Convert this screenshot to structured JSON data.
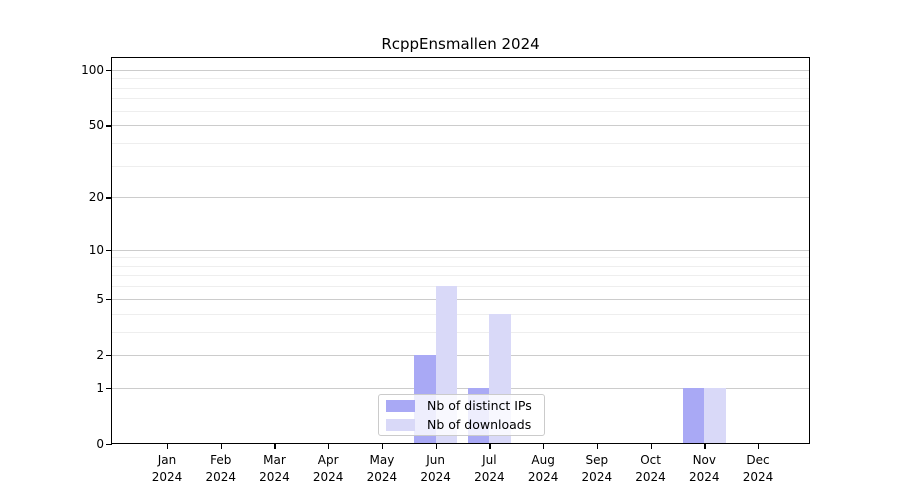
{
  "chart_data": {
    "type": "bar",
    "title": "RcppEnsmallen 2024",
    "categories": [
      "Jan",
      "Feb",
      "Mar",
      "Apr",
      "May",
      "Jun",
      "Jul",
      "Aug",
      "Sep",
      "Oct",
      "Nov",
      "Dec"
    ],
    "year_label": "2024",
    "series": [
      {
        "name": "Nb of distinct IPs",
        "color": "#a9a9f5",
        "values": [
          0,
          0,
          0,
          0,
          0,
          2,
          1,
          0,
          0,
          0,
          1,
          0
        ]
      },
      {
        "name": "Nb of downloads",
        "color": "#d9d9f8",
        "values": [
          0,
          0,
          0,
          0,
          0,
          6,
          4,
          0,
          0,
          0,
          1,
          0
        ]
      }
    ],
    "yscale": "log1p",
    "ylim": [
      0,
      116
    ],
    "y_ticks": [
      0,
      1,
      2,
      5,
      10,
      20,
      50,
      100
    ],
    "y_minor_ticks": [
      3,
      4,
      6,
      7,
      8,
      9,
      30,
      40,
      60,
      70,
      80,
      90
    ],
    "grid": "horizontal",
    "legend_position": "lower center",
    "colors": {
      "grid_major": "#cccccc",
      "grid_minor": "#eeeeee",
      "spine": "#000000",
      "background": "#ffffff"
    }
  }
}
